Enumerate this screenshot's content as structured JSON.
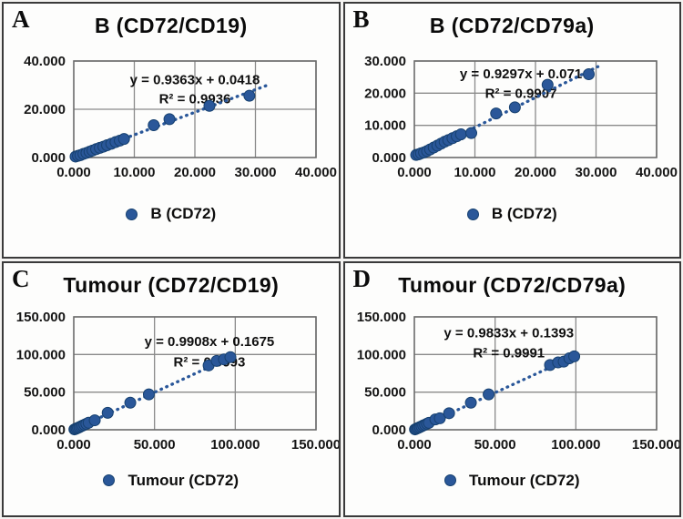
{
  "figure": {
    "dot_color": "#2a5799",
    "dot_stroke": "#16406f",
    "grid_color": "#8a8a8a",
    "border_color": "#6b6b6b",
    "text_color": "#101010"
  },
  "chart_data": [
    {
      "type": "scatter",
      "panel_label": "A",
      "title": "B (CD72/CD19)",
      "equation": "y = 0.9363x + 0.0418",
      "r_squared": "R² = 0.9936",
      "legend": "B (CD72)",
      "xlim": [
        0,
        40
      ],
      "ylim": [
        0,
        40
      ],
      "x_ticks": [
        "0.000",
        "10.000",
        "20.000",
        "30.000",
        "40.000"
      ],
      "y_ticks": [
        "0.000",
        "20.000",
        "40.000"
      ],
      "grid": true,
      "legend_position": "bottom",
      "trend": {
        "slope": 0.9363,
        "intercept": 0.0418,
        "x_start": 0,
        "x_end": 32
      },
      "eq_anchor": {
        "x_frac": 0.5,
        "y1_frac": 0.24,
        "y2_frac": 0.44
      },
      "points": [
        [
          0.3,
          0.4
        ],
        [
          0.7,
          0.7
        ],
        [
          1.1,
          1.0
        ],
        [
          1.6,
          1.5
        ],
        [
          2.1,
          1.9
        ],
        [
          2.6,
          2.4
        ],
        [
          3.1,
          2.9
        ],
        [
          3.7,
          3.5
        ],
        [
          4.3,
          4.0
        ],
        [
          4.9,
          4.5
        ],
        [
          5.5,
          5.1
        ],
        [
          6.2,
          5.7
        ],
        [
          6.9,
          6.4
        ],
        [
          7.6,
          7.0
        ],
        [
          8.3,
          7.7
        ],
        [
          13.2,
          13.4
        ],
        [
          15.8,
          15.9
        ],
        [
          22.4,
          21.4
        ],
        [
          29.0,
          25.6
        ]
      ]
    },
    {
      "type": "scatter",
      "panel_label": "B",
      "title": "B (CD72/CD79a)",
      "equation": "y = 0.9297x + 0.071",
      "r_squared": "R² = 0.9907",
      "legend": "B (CD72)",
      "xlim": [
        0,
        40
      ],
      "ylim": [
        0,
        30
      ],
      "x_ticks": [
        "0.000",
        "10.000",
        "20.000",
        "30.000",
        "40.000"
      ],
      "y_ticks": [
        "0.000",
        "10.000",
        "20.000",
        "30.000"
      ],
      "grid": true,
      "legend_position": "bottom",
      "trend": {
        "slope": 0.9297,
        "intercept": 0.071,
        "x_start": 0,
        "x_end": 30.3
      },
      "eq_anchor": {
        "x_frac": 0.44,
        "y1_frac": 0.18,
        "y2_frac": 0.38
      },
      "points": [
        [
          0.3,
          0.8
        ],
        [
          0.7,
          1.0
        ],
        [
          1.1,
          1.3
        ],
        [
          1.6,
          1.6
        ],
        [
          2.1,
          2.0
        ],
        [
          2.6,
          2.5
        ],
        [
          3.2,
          3.1
        ],
        [
          3.8,
          3.7
        ],
        [
          4.4,
          4.3
        ],
        [
          5.0,
          4.9
        ],
        [
          5.6,
          5.4
        ],
        [
          6.3,
          6.0
        ],
        [
          7.0,
          6.6
        ],
        [
          7.7,
          7.2
        ],
        [
          9.4,
          7.6
        ],
        [
          13.5,
          13.7
        ],
        [
          16.6,
          15.6
        ],
        [
          22.0,
          22.6
        ],
        [
          28.8,
          25.9
        ]
      ]
    },
    {
      "type": "scatter",
      "panel_label": "C",
      "title": "Tumour (CD72/CD19)",
      "equation": "y = 0.9908x + 0.1675",
      "r_squared": "R² = 0.9993",
      "legend": "Tumour (CD72)",
      "xlim": [
        0,
        150
      ],
      "ylim": [
        0,
        150
      ],
      "x_ticks": [
        "0.000",
        "50.000",
        "100.000",
        "150.000"
      ],
      "y_ticks": [
        "0.000",
        "50.000",
        "100.000",
        "150.000"
      ],
      "grid": true,
      "legend_position": "bottom",
      "trend": {
        "slope": 0.9908,
        "intercept": 0.1675,
        "x_start": 0,
        "x_end": 100
      },
      "eq_anchor": {
        "x_frac": 0.56,
        "y1_frac": 0.26,
        "y2_frac": 0.44
      },
      "points": [
        [
          0.4,
          0.5
        ],
        [
          1.0,
          1.0
        ],
        [
          1.8,
          1.8
        ],
        [
          2.6,
          2.6
        ],
        [
          3.5,
          3.5
        ],
        [
          4.5,
          4.6
        ],
        [
          5.5,
          5.6
        ],
        [
          6.6,
          6.7
        ],
        [
          7.8,
          7.9
        ],
        [
          9.2,
          9.3
        ],
        [
          13.0,
          12.6
        ],
        [
          21.0,
          22.5
        ],
        [
          35.0,
          36.0
        ],
        [
          46.5,
          47.0
        ],
        [
          83.5,
          85.5
        ],
        [
          88.5,
          91.5
        ],
        [
          93.0,
          93.5
        ],
        [
          97.0,
          96.5
        ]
      ]
    },
    {
      "type": "scatter",
      "panel_label": "D",
      "title": "Tumour (CD72/CD79a)",
      "equation": "y = 0.9833x + 0.1393",
      "r_squared": "R² = 0.9991",
      "legend": "Tumour (CD72)",
      "xlim": [
        0,
        150
      ],
      "ylim": [
        0,
        150
      ],
      "x_ticks": [
        "0.000",
        "50.000",
        "100.000",
        "150.000"
      ],
      "y_ticks": [
        "0.000",
        "50.000",
        "100.000",
        "150.000"
      ],
      "grid": true,
      "legend_position": "bottom",
      "trend": {
        "slope": 0.9833,
        "intercept": 0.1393,
        "x_start": 0,
        "x_end": 100
      },
      "eq_anchor": {
        "x_frac": 0.39,
        "y1_frac": 0.18,
        "y2_frac": 0.36
      },
      "points": [
        [
          0.4,
          0.5
        ],
        [
          1.0,
          1.1
        ],
        [
          1.8,
          1.9
        ],
        [
          2.6,
          2.7
        ],
        [
          3.5,
          3.6
        ],
        [
          4.5,
          4.6
        ],
        [
          5.5,
          5.7
        ],
        [
          6.6,
          6.7
        ],
        [
          7.8,
          8.0
        ],
        [
          9.0,
          9.2
        ],
        [
          13.0,
          13.8
        ],
        [
          15.8,
          15.2
        ],
        [
          21.5,
          22.0
        ],
        [
          35.0,
          36.0
        ],
        [
          46.0,
          47.0
        ],
        [
          84.0,
          86.0
        ],
        [
          89.0,
          89.5
        ],
        [
          92.5,
          90.5
        ],
        [
          96.0,
          95.0
        ],
        [
          99.0,
          97.5
        ]
      ]
    }
  ]
}
